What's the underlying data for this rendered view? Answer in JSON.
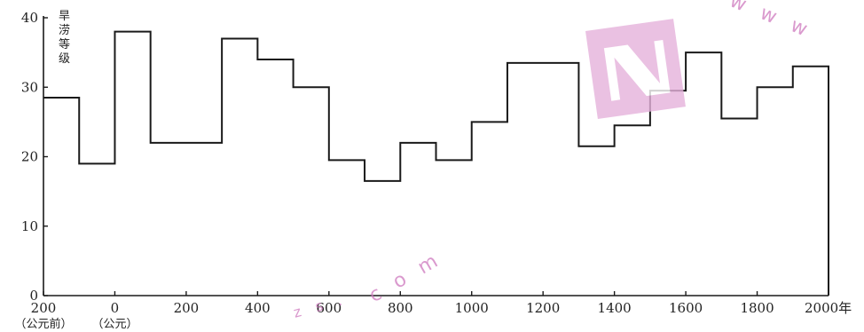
{
  "chart_data": {
    "type": "line",
    "step": true,
    "ylabel": "旱涝等级",
    "xunit": "年",
    "ylim": [
      0,
      40
    ],
    "yticks": [
      0,
      10,
      20,
      30,
      40
    ],
    "xticks": [
      -200,
      0,
      200,
      400,
      600,
      800,
      1000,
      1200,
      1400,
      1600,
      1800,
      2000
    ],
    "xtick_labels": [
      "200",
      "0",
      "200",
      "400",
      "600",
      "800",
      "1000",
      "1200",
      "1400",
      "1600",
      "1800",
      "2000"
    ],
    "xtick_sublabels": {
      "-200": "（公元前）",
      "0": "（公元）"
    },
    "segments": [
      {
        "x0": -200,
        "x1": -100,
        "y": 28.5
      },
      {
        "x0": -100,
        "x1": 0,
        "y": 19
      },
      {
        "x0": 0,
        "x1": 100,
        "y": 38
      },
      {
        "x0": 100,
        "x1": 300,
        "y": 22
      },
      {
        "x0": 300,
        "x1": 400,
        "y": 37
      },
      {
        "x0": 400,
        "x1": 500,
        "y": 34
      },
      {
        "x0": 500,
        "x1": 600,
        "y": 30
      },
      {
        "x0": 600,
        "x1": 700,
        "y": 19.5
      },
      {
        "x0": 700,
        "x1": 800,
        "y": 16.5
      },
      {
        "x0": 800,
        "x1": 900,
        "y": 22
      },
      {
        "x0": 900,
        "x1": 1000,
        "y": 19.5
      },
      {
        "x0": 1000,
        "x1": 1100,
        "y": 25
      },
      {
        "x0": 1100,
        "x1": 1300,
        "y": 33.5
      },
      {
        "x0": 1300,
        "x1": 1400,
        "y": 21.5
      },
      {
        "x0": 1400,
        "x1": 1500,
        "y": 24.5
      },
      {
        "x0": 1500,
        "x1": 1600,
        "y": 29.5
      },
      {
        "x0": 1600,
        "x1": 1700,
        "y": 35
      },
      {
        "x0": 1700,
        "x1": 1800,
        "y": 25.5
      },
      {
        "x0": 1800,
        "x1": 1900,
        "y": 30
      },
      {
        "x0": 1900,
        "x1": 2000,
        "y": 33
      }
    ]
  },
  "watermark": {
    "url": "w w w",
    "url2": "c o m",
    "url3": "z s ."
  },
  "colors": {
    "line": "#1a1a1a",
    "watermark": "#d07ac4"
  }
}
